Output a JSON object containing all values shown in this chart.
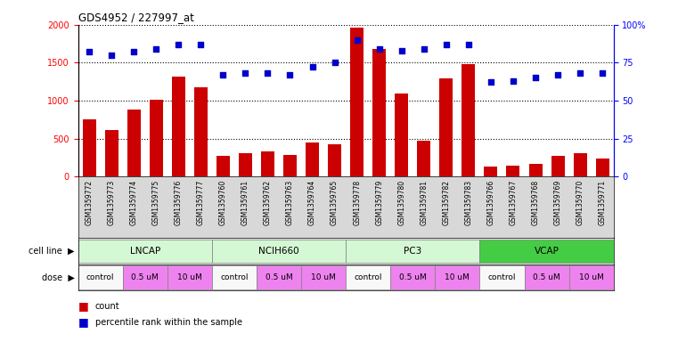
{
  "title": "GDS4952 / 227997_at",
  "samples": [
    "GSM1359772",
    "GSM1359773",
    "GSM1359774",
    "GSM1359775",
    "GSM1359776",
    "GSM1359777",
    "GSM1359760",
    "GSM1359761",
    "GSM1359762",
    "GSM1359763",
    "GSM1359764",
    "GSM1359765",
    "GSM1359778",
    "GSM1359779",
    "GSM1359780",
    "GSM1359781",
    "GSM1359782",
    "GSM1359783",
    "GSM1359766",
    "GSM1359767",
    "GSM1359768",
    "GSM1359769",
    "GSM1359770",
    "GSM1359771"
  ],
  "counts": [
    760,
    610,
    880,
    1010,
    1320,
    1180,
    270,
    310,
    330,
    290,
    450,
    430,
    1960,
    1680,
    1090,
    470,
    1290,
    1480,
    130,
    150,
    175,
    270,
    305,
    235
  ],
  "percentiles": [
    82,
    80,
    82,
    84,
    87,
    87,
    67,
    68,
    68,
    67,
    72,
    75,
    90,
    84,
    83,
    84,
    87,
    87,
    62,
    63,
    65,
    67,
    68,
    68
  ],
  "cell_lines": [
    {
      "name": "LNCAP",
      "start": 0,
      "end": 6,
      "color": "#d4f7d4"
    },
    {
      "name": "NCIH660",
      "start": 6,
      "end": 12,
      "color": "#d4f7d4"
    },
    {
      "name": "PC3",
      "start": 12,
      "end": 18,
      "color": "#d4f7d4"
    },
    {
      "name": "VCAP",
      "start": 18,
      "end": 24,
      "color": "#44cc44"
    }
  ],
  "dose_groups": [
    {
      "label": "control",
      "start": 0,
      "end": 2,
      "color": "#f8f8f8"
    },
    {
      "label": "0.5 uM",
      "start": 2,
      "end": 4,
      "color": "#EE82EE"
    },
    {
      "label": "10 uM",
      "start": 4,
      "end": 6,
      "color": "#EE82EE"
    },
    {
      "label": "control",
      "start": 6,
      "end": 8,
      "color": "#f8f8f8"
    },
    {
      "label": "0.5 uM",
      "start": 8,
      "end": 10,
      "color": "#EE82EE"
    },
    {
      "label": "10 uM",
      "start": 10,
      "end": 12,
      "color": "#EE82EE"
    },
    {
      "label": "control",
      "start": 12,
      "end": 14,
      "color": "#f8f8f8"
    },
    {
      "label": "0.5 uM",
      "start": 14,
      "end": 16,
      "color": "#EE82EE"
    },
    {
      "label": "10 uM",
      "start": 16,
      "end": 18,
      "color": "#EE82EE"
    },
    {
      "label": "control",
      "start": 18,
      "end": 20,
      "color": "#f8f8f8"
    },
    {
      "label": "0.5 uM",
      "start": 20,
      "end": 22,
      "color": "#EE82EE"
    },
    {
      "label": "10 uM",
      "start": 22,
      "end": 24,
      "color": "#EE82EE"
    }
  ],
  "bar_color": "#CC0000",
  "dot_color": "#0000CC",
  "ylim_left": [
    0,
    2000
  ],
  "ylim_right": [
    0,
    100
  ],
  "yticks_left": [
    0,
    500,
    1000,
    1500,
    2000
  ],
  "yticks_right": [
    0,
    25,
    50,
    75,
    100
  ],
  "ytick_labels_right": [
    "0",
    "25",
    "50",
    "75",
    "100%"
  ]
}
